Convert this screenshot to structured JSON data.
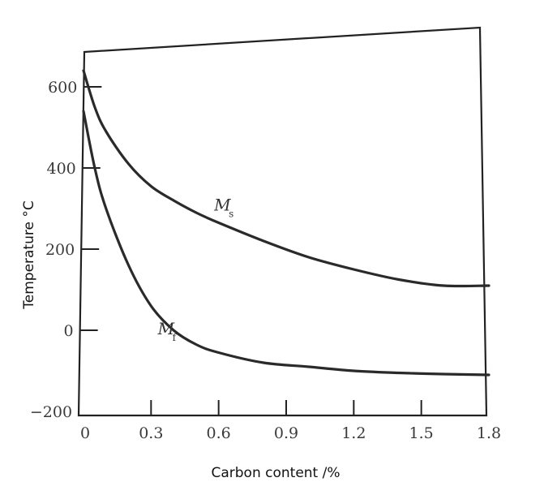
{
  "chart_data": {
    "type": "line",
    "title": "",
    "xlabel": "Carbon content /%",
    "ylabel": "Temperature °C",
    "xlim": [
      0,
      1.8
    ],
    "ylim": [
      -200,
      700
    ],
    "x_ticks": [
      {
        "value": 0,
        "label": "0"
      },
      {
        "value": 0.3,
        "label": "0.3"
      },
      {
        "value": 0.6,
        "label": "0.6"
      },
      {
        "value": 0.9,
        "label": "0.9"
      },
      {
        "value": 1.2,
        "label": "1.2"
      },
      {
        "value": 1.5,
        "label": "1.5"
      },
      {
        "value": 1.8,
        "label": "1.8"
      }
    ],
    "y_ticks": [
      {
        "value": -200,
        "label": "−200"
      },
      {
        "value": 0,
        "label": "0"
      },
      {
        "value": 200,
        "label": "200"
      },
      {
        "value": 400,
        "label": "400"
      },
      {
        "value": 600,
        "label": "600"
      }
    ],
    "grid": false,
    "series": [
      {
        "name": "Ms",
        "label_main": "M",
        "label_sub": "s",
        "label_at": [
          0.58,
          295
        ],
        "x": [
          0,
          0.05,
          0.1,
          0.2,
          0.3,
          0.4,
          0.5,
          0.6,
          0.8,
          1.0,
          1.2,
          1.4,
          1.6,
          1.8
        ],
        "y": [
          640,
          550,
          490,
          410,
          355,
          320,
          290,
          265,
          220,
          180,
          150,
          125,
          110,
          110
        ]
      },
      {
        "name": "Mf",
        "label_main": "M",
        "label_sub": "f",
        "label_at": [
          0.33,
          -10
        ],
        "x": [
          0,
          0.05,
          0.1,
          0.2,
          0.3,
          0.4,
          0.5,
          0.6,
          0.8,
          1.0,
          1.2,
          1.4,
          1.6,
          1.8
        ],
        "y": [
          540,
          400,
          300,
          160,
          60,
          0,
          -35,
          -55,
          -80,
          -90,
          -100,
          -105,
          -108,
          -110
        ]
      }
    ]
  }
}
